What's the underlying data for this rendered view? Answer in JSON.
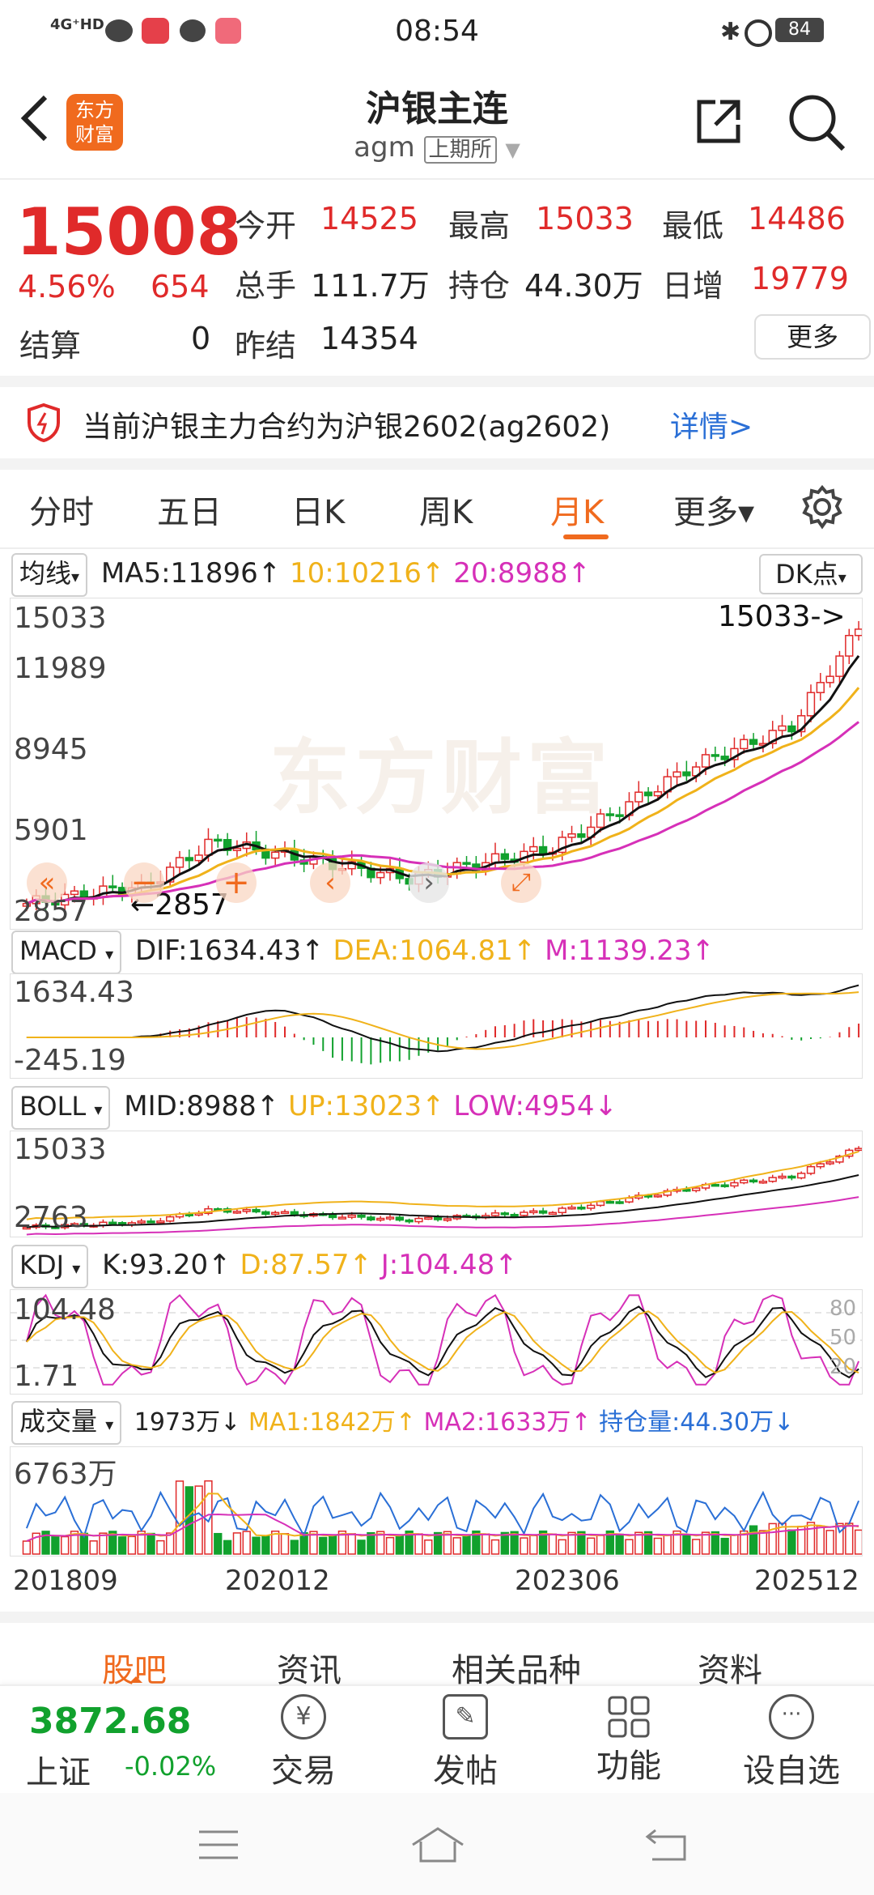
{
  "status_bar": {
    "left": "4G⁺HD",
    "time": "08:54",
    "battery": "84"
  },
  "header": {
    "title": "沪银主连",
    "code": "agm",
    "exchange": "上期所",
    "logo_line1": "东方",
    "logo_line2": "财富"
  },
  "quote": {
    "price": "15008",
    "change_pct": "4.56%",
    "change": "654",
    "labels": {
      "open": "今开",
      "high": "最高",
      "low": "最低",
      "volume": "总手",
      "position": "持仓",
      "daily_inc": "日增",
      "settle": "结算",
      "prev_settle": "昨结",
      "more": "更多"
    },
    "values": {
      "open": "14525",
      "high": "15033",
      "low": "14486",
      "volume": "111.7万",
      "position": "44.30万",
      "daily_inc": "19779",
      "settle": "0",
      "prev_settle": "14354"
    }
  },
  "notice": {
    "text": "当前沪银主力合约为沪银2602(ag2602)",
    "link": "详情>"
  },
  "tabs": [
    "分时",
    "五日",
    "日K",
    "周K",
    "月K",
    "更多▾"
  ],
  "active_tab": "月K",
  "ma_row": {
    "selector": "均线",
    "ma5": "MA5:11896↑",
    "ma10": "10:10216↑",
    "ma20": "20:8988↑",
    "dk": "DK点"
  },
  "main_chart": {
    "y_labels": [
      "15033",
      "11989",
      "8945",
      "5901",
      "2857"
    ],
    "max_label": "15033->",
    "min_label": "←2857",
    "watermark": "东方财富"
  },
  "macd_row": {
    "selector": "MACD",
    "dif": "DIF:1634.43↑",
    "dea": "DEA:1064.81↑",
    "m": "M:1139.23↑",
    "y_top": "1634.43",
    "y_bottom": "-245.19"
  },
  "boll_row": {
    "selector": "BOLL",
    "mid": "MID:8988↑",
    "up": "UP:13023↑",
    "low": "LOW:4954↓",
    "y_top": "15033",
    "y_bottom": "2763"
  },
  "kdj_row": {
    "selector": "KDJ",
    "k": "K:93.20↑",
    "d": "D:87.57↑",
    "j": "J:104.48↑",
    "y_top": "104.48",
    "y_bottom": "1.71",
    "levels": [
      "80",
      "50",
      "20"
    ]
  },
  "vol_row": {
    "selector": "成交量",
    "vol": "1973万↓",
    "ma1": "MA1:1842万↑",
    "ma2": "MA2:1633万↑",
    "pos": "持仓量:44.30万↓",
    "y_top": "6763万"
  },
  "x_labels": [
    "201809",
    "202012",
    "202306",
    "202512"
  ],
  "sub_tabs": [
    "股吧",
    "资讯",
    "相关品种",
    "资料"
  ],
  "bottom_bar": {
    "index_value": "3872.68",
    "index_name": "上证",
    "index_change": "-0.02%",
    "trade": "交易",
    "post": "发帖",
    "func": "功能",
    "watch": "设自选"
  },
  "colors": {
    "up": "#e02a2a",
    "down": "#11a12d",
    "ma10": "#f0b21a",
    "ma20": "#d630b8",
    "accent": "#f06a1e"
  }
}
